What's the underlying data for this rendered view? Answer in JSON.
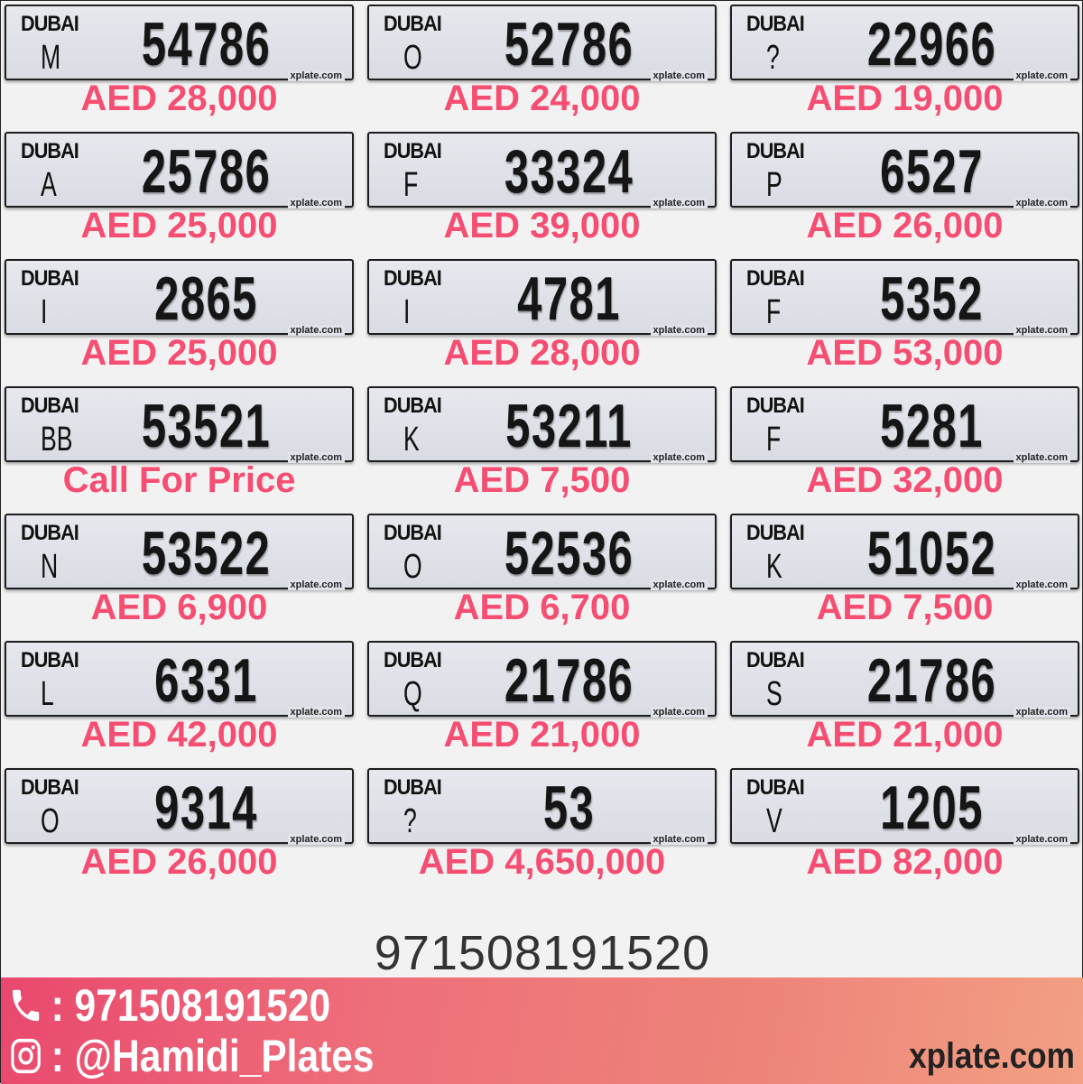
{
  "plates": [
    {
      "emirate": "DUBAI",
      "code": "M",
      "number": "54786",
      "price": "AED 28,000"
    },
    {
      "emirate": "DUBAI",
      "code": "O",
      "number": "52786",
      "price": "AED 24,000"
    },
    {
      "emirate": "DUBAI",
      "code": "?",
      "number": "22966",
      "price": "AED 19,000"
    },
    {
      "emirate": "DUBAI",
      "code": "A",
      "number": "25786",
      "price": "AED 25,000"
    },
    {
      "emirate": "DUBAI",
      "code": "F",
      "number": "33324",
      "price": "AED 39,000"
    },
    {
      "emirate": "DUBAI",
      "code": "P",
      "number": "6527",
      "price": "AED 26,000"
    },
    {
      "emirate": "DUBAI",
      "code": "I",
      "number": "2865",
      "price": "AED 25,000"
    },
    {
      "emirate": "DUBAI",
      "code": "I",
      "number": "4781",
      "price": "AED 28,000"
    },
    {
      "emirate": "DUBAI",
      "code": "F",
      "number": "5352",
      "price": "AED 53,000"
    },
    {
      "emirate": "DUBAI",
      "code": "BB",
      "number": "53521",
      "price": "Call For Price"
    },
    {
      "emirate": "DUBAI",
      "code": "K",
      "number": "53211",
      "price": "AED 7,500"
    },
    {
      "emirate": "DUBAI",
      "code": "F",
      "number": "5281",
      "price": "AED 32,000"
    },
    {
      "emirate": "DUBAI",
      "code": "N",
      "number": "53522",
      "price": "AED 6,900"
    },
    {
      "emirate": "DUBAI",
      "code": "O",
      "number": "52536",
      "price": "AED 6,700"
    },
    {
      "emirate": "DUBAI",
      "code": "K",
      "number": "51052",
      "price": "AED 7,500"
    },
    {
      "emirate": "DUBAI",
      "code": "L",
      "number": "6331",
      "price": "AED 42,000"
    },
    {
      "emirate": "DUBAI",
      "code": "Q",
      "number": "21786",
      "price": "AED 21,000"
    },
    {
      "emirate": "DUBAI",
      "code": "S",
      "number": "21786",
      "price": "AED 21,000"
    },
    {
      "emirate": "DUBAI",
      "code": "O",
      "number": "9314",
      "price": "AED 26,000"
    },
    {
      "emirate": "DUBAI",
      "code": "?",
      "number": "53",
      "price": "AED 4,650,000"
    },
    {
      "emirate": "DUBAI",
      "code": "V",
      "number": "1205",
      "price": "AED 82,000"
    }
  ],
  "plate_watermark": "xplate.com",
  "contact_number": "971508191520",
  "footer": {
    "phone_label": ": 971508191520",
    "instagram_label": ": @Hamidi_Plates",
    "site": "xplate.com",
    "icons": [
      "phone-icon",
      "instagram-icon"
    ]
  },
  "colors": {
    "price": "#f54e72",
    "band_start": "#e9486e",
    "band_end": "#f3a084"
  }
}
